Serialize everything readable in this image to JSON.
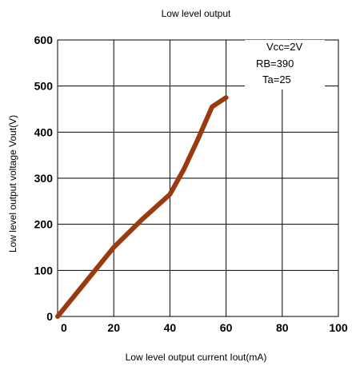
{
  "chart_data": {
    "type": "line",
    "title": "Low level output",
    "xlabel": "Low level output current  Iout(mA)",
    "ylabel": "Low level output voltage Vout(V)",
    "xlim": [
      0,
      100
    ],
    "ylim": [
      0,
      600
    ],
    "x_ticks": [
      "0",
      "20",
      "40",
      "60",
      "80",
      "100"
    ],
    "y_ticks": [
      "0",
      "100",
      "200",
      "300",
      "400",
      "500",
      "600"
    ],
    "grid": true,
    "conditions": [
      "Vcc=2V",
      "RB=390",
      "Ta=25"
    ],
    "series": [
      {
        "color": "#9b3a10",
        "x": [
          0,
          10,
          20,
          30,
          40,
          45,
          50,
          55,
          60
        ],
        "y": [
          0,
          75,
          150,
          210,
          265,
          320,
          385,
          455,
          475
        ]
      }
    ]
  }
}
